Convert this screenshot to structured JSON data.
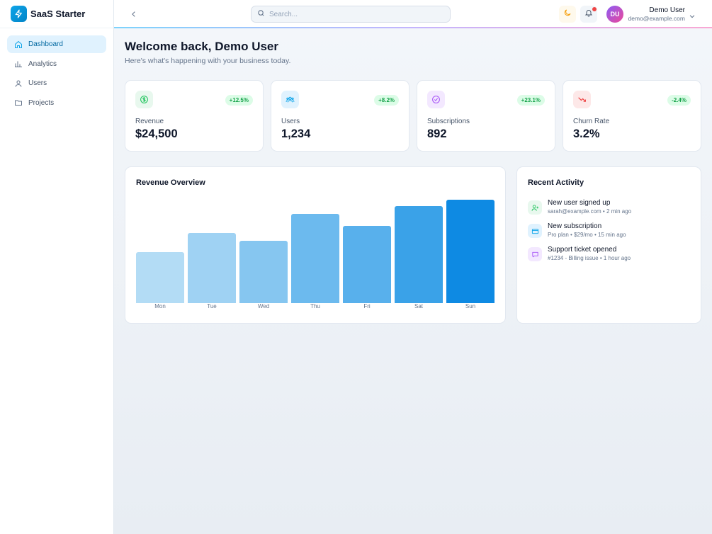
{
  "brand": {
    "name": "SaaS Starter",
    "icon": "bolt-icon"
  },
  "sidebar": {
    "items": [
      {
        "label": "Dashboard",
        "icon": "home-icon",
        "active": true
      },
      {
        "label": "Analytics",
        "icon": "bar-chart-icon",
        "active": false
      },
      {
        "label": "Users",
        "icon": "users-icon",
        "active": false
      },
      {
        "label": "Projects",
        "icon": "folder-icon",
        "active": false
      }
    ]
  },
  "topbar": {
    "search_placeholder": "Search...",
    "user": {
      "initials": "DU",
      "name": "Demo User",
      "email": "demo@example.com"
    }
  },
  "welcome": {
    "title": "Welcome back, Demo User",
    "subtitle": "Here's what's happening with your business today."
  },
  "stats": [
    {
      "label": "Revenue",
      "value": "$24,500",
      "change": "+12.5%",
      "icon": "dollar-icon",
      "color": "#22c55e"
    },
    {
      "label": "Users",
      "value": "1,234",
      "change": "+8.2%",
      "icon": "users-icon",
      "color": "#0ea5e9"
    },
    {
      "label": "Subscriptions",
      "value": "892",
      "change": "+23.1%",
      "icon": "check-circle-icon",
      "color": "#a855f7"
    },
    {
      "label": "Churn Rate",
      "value": "3.2%",
      "change": "-2.4%",
      "icon": "trending-down-icon",
      "color": "#ef4444"
    }
  ],
  "revenue_overview": {
    "title": "Revenue Overview"
  },
  "chart_data": {
    "type": "bar",
    "categories": [
      "Mon",
      "Tue",
      "Wed",
      "Thu",
      "Fri",
      "Sat",
      "Sun"
    ],
    "values": [
      49,
      68,
      60,
      86,
      75,
      94,
      100
    ],
    "ylim": [
      0,
      100
    ],
    "colors": [
      "#b3dcf5",
      "#9fd2f3",
      "#86c6f0",
      "#6cbaee",
      "#58b0ec",
      "#3aa2e8",
      "#0e8ae3"
    ],
    "grid": false,
    "title": "Revenue Overview"
  },
  "activity": {
    "title": "Recent Activity",
    "items": [
      {
        "title": "New user signed up",
        "sub": "sarah@example.com • 2 min ago",
        "icon": "user-plus-icon",
        "bg": "#e8f8ee",
        "color": "#22c55e"
      },
      {
        "title": "New subscription",
        "sub": "Pro plan • $29/mo • 15 min ago",
        "icon": "credit-card-icon",
        "bg": "#e0f2fe",
        "color": "#0ea5e9"
      },
      {
        "title": "Support ticket opened",
        "sub": "#1234 - Billing issue • 1 hour ago",
        "icon": "message-icon",
        "bg": "#f3e8ff",
        "color": "#a855f7"
      }
    ]
  }
}
